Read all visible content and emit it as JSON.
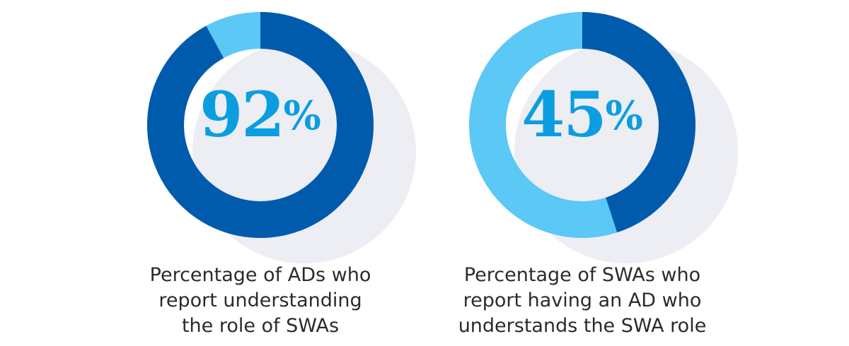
{
  "colors": {
    "primary": "#005bad",
    "secondary": "#5bc8f5",
    "shadow": "#ededf4",
    "number": "#0a9ee0"
  },
  "chart_data": [
    {
      "type": "pie",
      "subtype": "donut",
      "value": 92,
      "remainder": 8,
      "label": "92",
      "unit": "%",
      "caption": [
        "Percentage of ADs who",
        "report understanding",
        "the role of SWAs"
      ]
    },
    {
      "type": "pie",
      "subtype": "donut",
      "value": 45,
      "remainder": 55,
      "label": "45",
      "unit": "%",
      "caption": [
        "Percentage of SWAs who",
        "report having an AD who",
        "understands the SWA role"
      ]
    }
  ]
}
